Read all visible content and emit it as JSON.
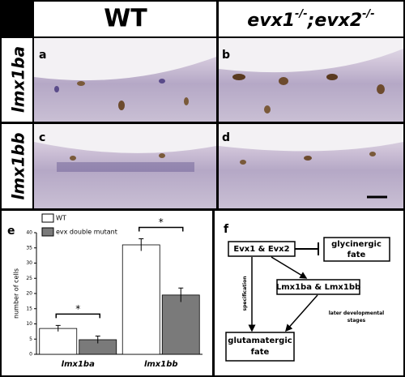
{
  "headers": {
    "wt": "WT",
    "mutant_parts": [
      "evx1",
      "-/-",
      ";evx2",
      "-/-"
    ]
  },
  "row_labels": [
    "lmx1ba",
    "lmx1bb"
  ],
  "panel_labels": [
    "a",
    "b",
    "c",
    "d",
    "e",
    "f"
  ],
  "chart_data": {
    "type": "bar",
    "y_label": "number of cells",
    "categories": [
      "lmx1ba",
      "lmx1bb"
    ],
    "series": [
      {
        "name": "WT",
        "color": "#ffffff",
        "values": [
          8.5,
          36
        ],
        "errors": [
          1,
          2
        ]
      },
      {
        "name": "evx double mutant",
        "color": "#7a7a7a",
        "values": [
          4.8,
          19.5
        ],
        "errors": [
          1.2,
          2.3
        ]
      }
    ],
    "significance": [
      "*",
      "*"
    ],
    "ylim": [
      0,
      40
    ],
    "yticks": [
      0,
      5,
      10,
      15,
      20,
      25,
      30,
      35,
      40
    ]
  },
  "diagram": {
    "nodes": [
      {
        "lines": [
          "Evx1 & Evx2"
        ]
      },
      {
        "lines": [
          "glycinergic",
          "fate"
        ]
      },
      {
        "lines": [
          "Lmx1ba & Lmx1bb"
        ]
      },
      {
        "lines": [
          "glutamatergic",
          "fate"
        ]
      }
    ],
    "edge_labels": [
      {
        "lines": [
          "specification"
        ]
      },
      {
        "lines": [
          "later developmental",
          "stages"
        ]
      }
    ]
  }
}
